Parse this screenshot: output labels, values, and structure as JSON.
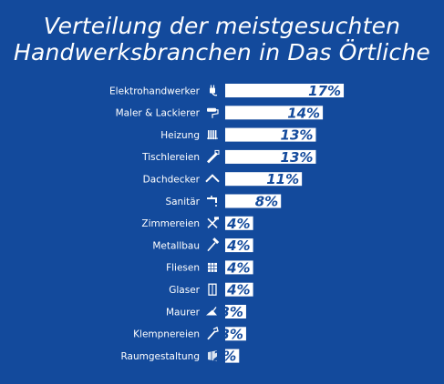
{
  "chart_data": {
    "type": "bar",
    "orientation": "horizontal",
    "title_lines": [
      "Verteilung der meistgesuchten",
      "Handwerksbranchen in Das Örtliche"
    ],
    "categories": [
      "Elektrohandwerker",
      "Maler & Lackierer",
      "Heizung",
      "Tischlereien",
      "Dachdecker",
      "Sanitär",
      "Zimmereien",
      "Metallbau",
      "Fliesen",
      "Glaser",
      "Maurer",
      "Klempnereien",
      "Raumgestaltung"
    ],
    "values": [
      17,
      14,
      13,
      13,
      11,
      8,
      4,
      4,
      4,
      4,
      3,
      3,
      2
    ],
    "value_labels": [
      "17%",
      "14%",
      "13%",
      "13%",
      "11%",
      "8%",
      "4%",
      "4%",
      "4%",
      "4%",
      "3%",
      "3%",
      "2%"
    ],
    "icons": [
      "plug-icon",
      "paint-roller-icon",
      "radiator-icon",
      "saw-icon",
      "roof-icon",
      "faucet-icon",
      "hammer-axe-icon",
      "hammer-icon",
      "tiles-icon",
      "window-icon",
      "trowel-icon",
      "pipe-wrench-icon",
      "decor-icon"
    ],
    "colors": {
      "background": "#134a9c",
      "bar": "#ffffff",
      "value_text": "#134a9c"
    }
  }
}
